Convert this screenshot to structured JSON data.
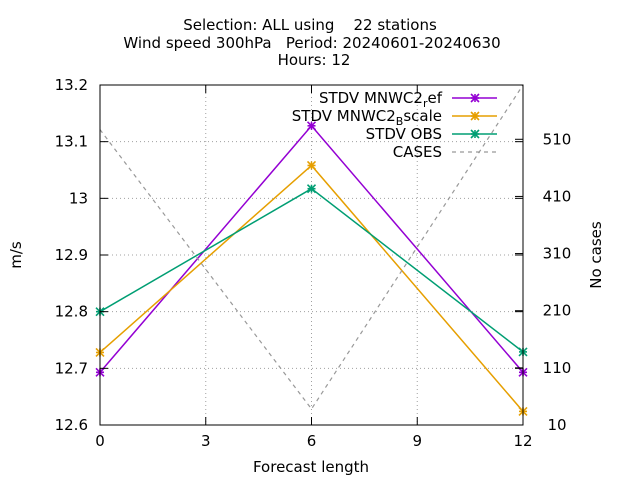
{
  "chart_data": {
    "type": "line",
    "title_lines": [
      "Selection: ALL using    22 stations",
      "Wind speed 300hPa   Period: 20240601-20240630",
      "Hours: 12"
    ],
    "xlabel": "Forecast length",
    "ylabel": "m/s",
    "y2label": "No cases",
    "x": [
      0,
      6,
      12
    ],
    "xticks": [
      0,
      3,
      6,
      9,
      12
    ],
    "xlim": [
      0,
      12
    ],
    "ylim": [
      12.6,
      13.2
    ],
    "yticks": [
      "12.6",
      "12.7",
      "12.8",
      "12.9",
      "13",
      "13.1",
      "13.2"
    ],
    "y2lim": [
      10,
      605
    ],
    "y2ticks": [
      "10",
      "110",
      "210",
      "310",
      "410",
      "510"
    ],
    "grid": true,
    "legend_position": "top-right",
    "series": [
      {
        "name": "STDV MNWC2_ref",
        "legend_main": "STDV MNWC2",
        "legend_sub": "r",
        "legend_tail": "ef",
        "axis": "y1",
        "color": "#9400d3",
        "style": "solid",
        "marker": "star",
        "values": [
          12.693,
          13.128,
          12.693
        ]
      },
      {
        "name": "STDV MNWC2_Bscale",
        "legend_main": "STDV MNWC2",
        "legend_sub": "B",
        "legend_tail": "scale",
        "axis": "y1",
        "color": "#e69f00",
        "style": "solid",
        "marker": "star",
        "values": [
          12.728,
          13.058,
          12.624
        ]
      },
      {
        "name": "STDV OBS",
        "legend_main": "STDV OBS",
        "legend_sub": "",
        "legend_tail": "",
        "axis": "y1",
        "color": "#009e73",
        "style": "solid",
        "marker": "star",
        "values": [
          12.8,
          13.017,
          12.729
        ]
      },
      {
        "name": "CASES",
        "legend_main": "CASES",
        "legend_sub": "",
        "legend_tail": "",
        "axis": "y2",
        "color": "#999999",
        "style": "dashed",
        "marker": "none",
        "values": [
          527,
          38,
          605
        ]
      }
    ]
  }
}
